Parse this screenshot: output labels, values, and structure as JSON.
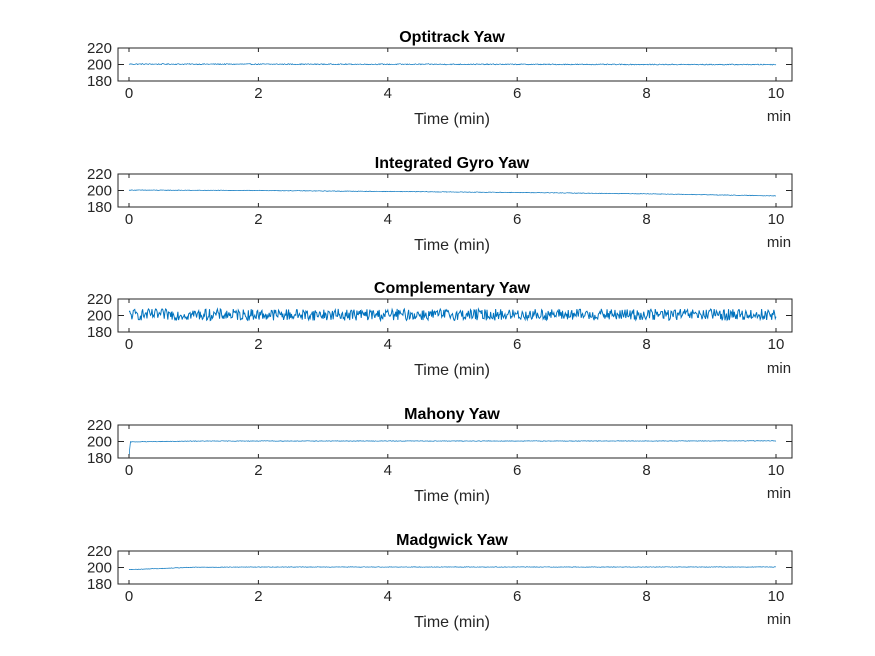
{
  "chart_data": [
    {
      "type": "line",
      "title": "Optitrack Yaw",
      "xlabel": "Time (min)",
      "x_unit_label": "min",
      "xlim": [
        0,
        10
      ],
      "ylim": [
        180,
        220
      ],
      "xticks": [
        0,
        2,
        4,
        6,
        8,
        10
      ],
      "yticks": [
        180,
        200,
        220
      ],
      "grid": false,
      "series": [
        {
          "color": "#0072BD",
          "noise_amplitude": 0.6,
          "x": [
            0,
            2,
            4,
            6,
            8,
            10
          ],
          "values": [
            200.5,
            200.4,
            200.3,
            200.2,
            200.0,
            199.9
          ]
        }
      ]
    },
    {
      "type": "line",
      "title": "Integrated Gyro Yaw",
      "xlabel": "Time (min)",
      "x_unit_label": "min",
      "xlim": [
        0,
        10
      ],
      "ylim": [
        180,
        220
      ],
      "xticks": [
        0,
        2,
        4,
        6,
        8,
        10
      ],
      "yticks": [
        180,
        200,
        220
      ],
      "grid": false,
      "series": [
        {
          "color": "#0072BD",
          "noise_amplitude": 0.3,
          "x": [
            0,
            2,
            4,
            6,
            8,
            10
          ],
          "values": [
            200.5,
            200.0,
            198.8,
            197.6,
            196.0,
            193.5
          ]
        }
      ]
    },
    {
      "type": "line",
      "title": "Complementary Yaw",
      "xlabel": "Time (min)",
      "x_unit_label": "min",
      "xlim": [
        0,
        10
      ],
      "ylim": [
        180,
        220
      ],
      "xticks": [
        0,
        2,
        4,
        6,
        8,
        10
      ],
      "yticks": [
        180,
        200,
        220
      ],
      "grid": false,
      "series": [
        {
          "color": "#0072BD",
          "noise_amplitude": 7,
          "x": [
            0,
            2,
            4,
            6,
            8,
            10
          ],
          "values": [
            201,
            201,
            201,
            201,
            201,
            201
          ]
        }
      ]
    },
    {
      "type": "line",
      "title": "Mahony Yaw",
      "xlabel": "Time (min)",
      "x_unit_label": "min",
      "xlim": [
        0,
        10
      ],
      "ylim": [
        180,
        220
      ],
      "xticks": [
        0,
        2,
        4,
        6,
        8,
        10
      ],
      "yticks": [
        180,
        200,
        220
      ],
      "grid": false,
      "series": [
        {
          "color": "#0072BD",
          "noise_amplitude": 0.3,
          "x": [
            0,
            0.02,
            1,
            2,
            4,
            6,
            8,
            10
          ],
          "values": [
            180,
            199.5,
            200.5,
            200.6,
            200.6,
            200.6,
            200.6,
            200.8
          ]
        }
      ]
    },
    {
      "type": "line",
      "title": "Madgwick Yaw",
      "xlabel": "Time (min)",
      "x_unit_label": "min",
      "xlim": [
        0,
        10
      ],
      "ylim": [
        180,
        220
      ],
      "xticks": [
        0,
        2,
        4,
        6,
        8,
        10
      ],
      "yticks": [
        180,
        200,
        220
      ],
      "grid": false,
      "series": [
        {
          "color": "#0072BD",
          "noise_amplitude": 0.3,
          "x": [
            0,
            0.5,
            1,
            2,
            4,
            6,
            8,
            10
          ],
          "values": [
            197.5,
            198.8,
            200.3,
            200.6,
            200.6,
            200.6,
            200.6,
            200.6
          ]
        }
      ]
    }
  ]
}
